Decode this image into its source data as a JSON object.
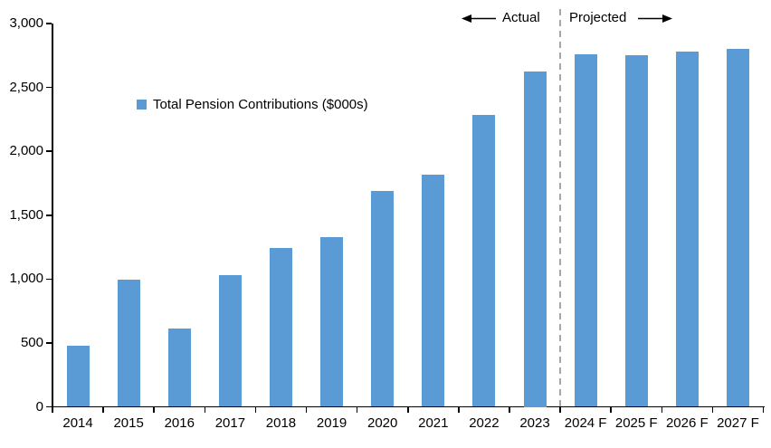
{
  "chart_data": {
    "type": "bar",
    "title": "",
    "categories": [
      "2014",
      "2015",
      "2016",
      "2017",
      "2018",
      "2019",
      "2020",
      "2021",
      "2022",
      "2023",
      "2024 F",
      "2025 F",
      "2026 F",
      "2027 F"
    ],
    "values": [
      475,
      995,
      610,
      1030,
      1240,
      1325,
      1690,
      1820,
      2285,
      2625,
      2760,
      2750,
      2780,
      2805
    ],
    "series_name": "Total Pension Contributions ($000s)",
    "xlabel": "",
    "ylabel": "",
    "ylim": [
      0,
      3000
    ],
    "ytick_step": 500,
    "ytick_labels": [
      "0",
      "500",
      "1,000",
      "1,500",
      "2,000",
      "2,500",
      "3,000"
    ],
    "grid": false,
    "legend_position": "inside-upper-left",
    "bar_color": "#5B9BD5",
    "axis_color": "#000000",
    "divider": {
      "label_left": "Actual",
      "label_right": "Projected",
      "position_between": [
        "2023",
        "2024 F"
      ],
      "divider_index": 10,
      "line_color": "#A6A6A6",
      "line_style": "dashed"
    }
  }
}
